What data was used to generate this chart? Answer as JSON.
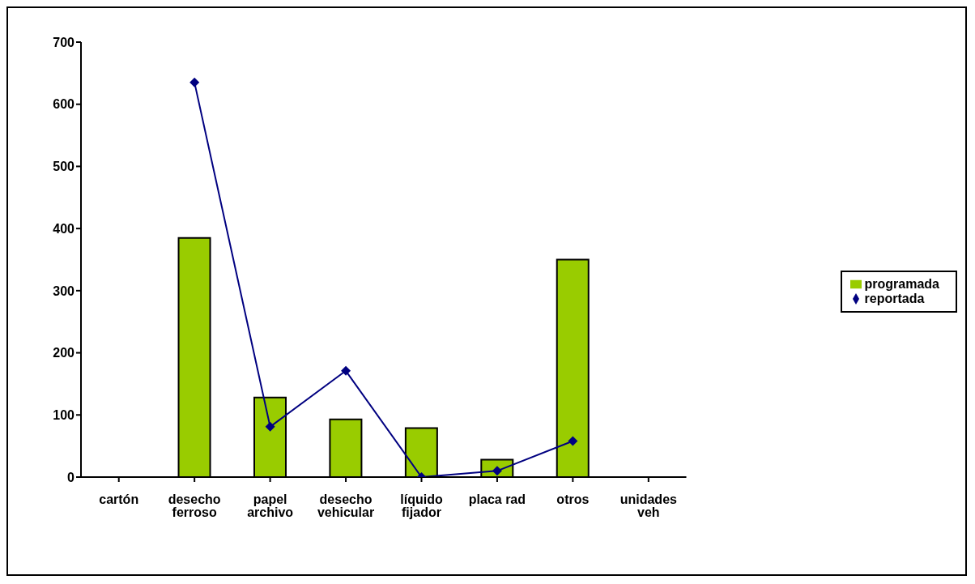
{
  "chart_data": {
    "type": "bar",
    "categories": [
      "cartón",
      "desecho ferroso",
      "papel archivo",
      "desecho vehicular",
      "líquido fijador",
      "placa rad",
      "otros",
      "unidades veh"
    ],
    "series": [
      {
        "name": "programada",
        "color": "#99cc00",
        "values": [
          null,
          385,
          128,
          93,
          79,
          28,
          350,
          null
        ]
      },
      {
        "name": "reportada",
        "type": "line",
        "color": "#000080",
        "marker": "diamond",
        "values": [
          null,
          635,
          81,
          171,
          0,
          10,
          58,
          null
        ]
      }
    ],
    "ylim": [
      0,
      700
    ],
    "yticks": [
      0,
      100,
      200,
      300,
      400,
      500,
      600,
      700
    ],
    "grid": false,
    "legend": "right"
  }
}
